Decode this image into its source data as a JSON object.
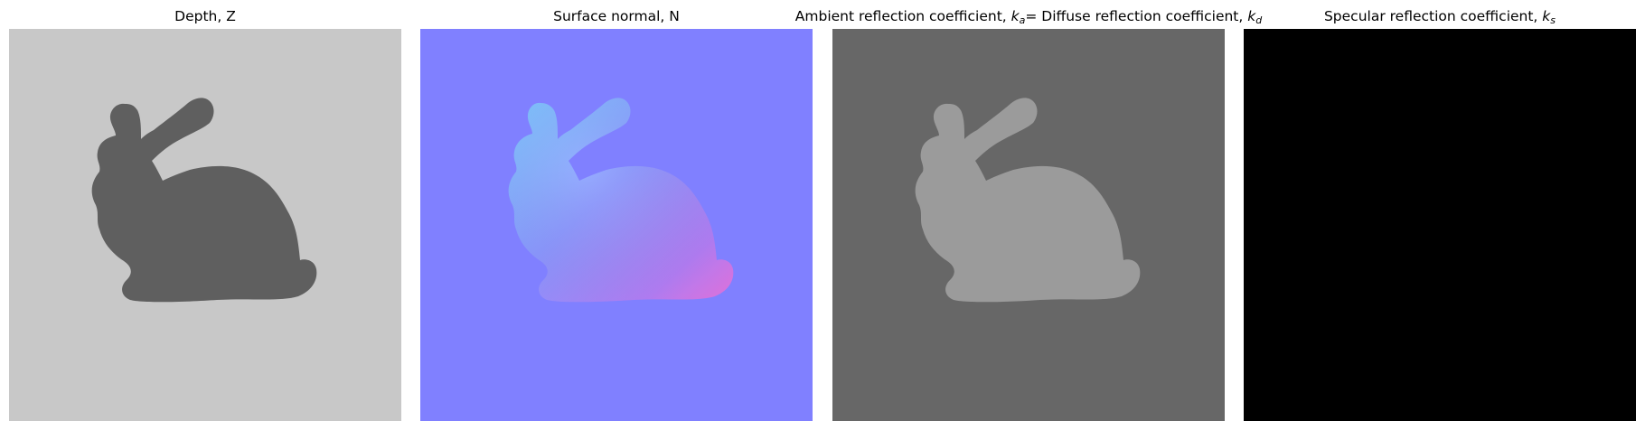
{
  "panels": [
    {
      "title": "Depth, Z",
      "background_color": "#c8c8c8",
      "bunny_fill": "#5f5f5f",
      "image_description": "bunny-depth-icon"
    },
    {
      "title": "Surface normal, N",
      "background_color": "#8080ff",
      "bunny_fill": "#8aa0ff",
      "image_description": "bunny-normal-map-icon"
    },
    {
      "title_prefix": "Ambient reflection coefficient, ",
      "title_var": "k",
      "title_sub": "a",
      "title_mid": "= Diffuse reflection coefficient, ",
      "title_var2": "k",
      "title_sub2": "d",
      "background_color": "#676767",
      "bunny_fill": "#9b9b9b",
      "image_description": "bunny-albedo-icon"
    },
    {
      "title_prefix": "Specular reflection coefficient, ",
      "title_var": "k",
      "title_sub": "s",
      "background_color": "#000000",
      "image_description": "black-specular-map-icon"
    }
  ]
}
